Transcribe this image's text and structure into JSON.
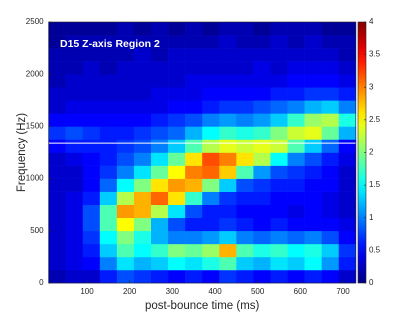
{
  "chart_data": {
    "type": "heatmap",
    "title": "D15 Z-axis Region 2",
    "xlabel": "post-bounce time (ms)",
    "ylabel": "Frequency (Hz)",
    "colormap": "jet",
    "xlim": [
      10,
      730
    ],
    "ylim": [
      0,
      2500
    ],
    "xticks": [
      100,
      200,
      300,
      400,
      500,
      600,
      700
    ],
    "yticks": [
      0,
      500,
      1000,
      1500,
      2000,
      2500
    ],
    "clim": [
      0,
      4
    ],
    "cticks": [
      0,
      0.5,
      1,
      1.5,
      2,
      2.5,
      3,
      3.5,
      4
    ],
    "hline": 1340,
    "x_bins": [
      10,
      50,
      90,
      130,
      170,
      210,
      250,
      290,
      330,
      370,
      410,
      450,
      490,
      530,
      570,
      610,
      650,
      690,
      730
    ],
    "y_bins": [
      0,
      125,
      250,
      375,
      500,
      625,
      750,
      875,
      1000,
      1125,
      1250,
      1375,
      1500,
      1625,
      1750,
      1875,
      2000,
      2125,
      2250,
      2375,
      2500
    ],
    "z": [
      [
        0.2,
        0.3,
        0.3,
        0.6,
        0.8,
        0.7,
        0.6,
        0.5,
        0.6,
        0.5,
        0.7,
        0.6,
        0.5,
        0.6,
        0.5,
        0.6,
        0.5,
        0.3
      ],
      [
        0.3,
        0.4,
        0.5,
        1.0,
        1.4,
        1.2,
        1.3,
        1.5,
        1.4,
        1.6,
        1.8,
        1.3,
        1.2,
        1.4,
        1.3,
        1.5,
        1.1,
        0.6
      ],
      [
        0.3,
        0.4,
        0.6,
        1.3,
        1.8,
        1.5,
        1.7,
        2.0,
        1.9,
        2.1,
        2.8,
        1.8,
        1.6,
        1.7,
        1.5,
        1.6,
        1.3,
        0.7
      ],
      [
        0.3,
        0.4,
        0.7,
        1.5,
        2.0,
        1.6,
        1.2,
        1.0,
        1.0,
        1.1,
        1.3,
        1.0,
        0.9,
        1.0,
        0.9,
        1.0,
        0.8,
        0.5
      ],
      [
        0.3,
        0.4,
        0.8,
        1.8,
        2.5,
        2.0,
        1.2,
        0.8,
        0.6,
        0.6,
        0.7,
        0.6,
        0.5,
        0.6,
        0.5,
        0.5,
        0.5,
        0.4
      ],
      [
        0.3,
        0.4,
        0.8,
        1.8,
        2.9,
        2.8,
        2.2,
        1.4,
        0.8,
        0.6,
        0.6,
        0.5,
        0.5,
        0.5,
        0.4,
        0.5,
        0.4,
        0.3
      ],
      [
        0.3,
        0.4,
        0.6,
        1.3,
        2.2,
        2.8,
        3.1,
        2.6,
        1.7,
        1.0,
        0.7,
        0.6,
        0.6,
        0.5,
        0.5,
        0.5,
        0.4,
        0.3
      ],
      [
        0.3,
        0.3,
        0.5,
        0.9,
        1.5,
        2.0,
        2.6,
        2.9,
        2.8,
        2.0,
        1.3,
        0.8,
        0.7,
        0.6,
        0.6,
        0.5,
        0.5,
        0.3
      ],
      [
        0.3,
        0.3,
        0.5,
        0.7,
        1.0,
        1.4,
        1.9,
        2.5,
        3.0,
        3.1,
        2.7,
        1.8,
        1.1,
        0.8,
        0.7,
        0.6,
        0.5,
        0.3
      ],
      [
        0.3,
        0.4,
        0.5,
        0.6,
        0.8,
        1.0,
        1.4,
        1.9,
        2.6,
        3.2,
        3.0,
        2.6,
        2.2,
        1.5,
        1.0,
        0.8,
        0.6,
        0.4
      ],
      [
        0.5,
        0.6,
        0.6,
        0.6,
        0.7,
        0.8,
        1.0,
        1.3,
        1.8,
        2.2,
        2.4,
        2.3,
        2.4,
        2.3,
        1.8,
        1.3,
        0.9,
        0.5
      ],
      [
        0.7,
        0.8,
        0.7,
        0.6,
        0.6,
        0.7,
        0.8,
        0.9,
        1.2,
        1.5,
        1.7,
        1.6,
        1.7,
        2.0,
        2.3,
        2.4,
        1.9,
        1.2
      ],
      [
        0.5,
        0.5,
        0.5,
        0.5,
        0.5,
        0.5,
        0.6,
        0.7,
        0.8,
        1.0,
        1.1,
        1.0,
        1.1,
        1.3,
        1.7,
        2.1,
        2.2,
        1.6
      ],
      [
        0.3,
        0.4,
        0.4,
        0.4,
        0.4,
        0.4,
        0.4,
        0.5,
        0.5,
        0.6,
        0.7,
        0.7,
        0.8,
        0.9,
        1.0,
        1.2,
        1.3,
        1.0
      ],
      [
        0.3,
        0.3,
        0.3,
        0.3,
        0.3,
        0.3,
        0.4,
        0.4,
        0.4,
        0.5,
        0.5,
        0.5,
        0.5,
        0.6,
        0.6,
        0.7,
        0.7,
        0.6
      ],
      [
        0.2,
        0.3,
        0.3,
        0.3,
        0.3,
        0.3,
        0.3,
        0.3,
        0.4,
        0.4,
        0.4,
        0.4,
        0.4,
        0.4,
        0.5,
        0.5,
        0.5,
        0.4
      ],
      [
        0.2,
        0.2,
        0.3,
        0.2,
        0.3,
        0.3,
        0.3,
        0.3,
        0.3,
        0.3,
        0.3,
        0.3,
        0.4,
        0.3,
        0.4,
        0.4,
        0.4,
        0.3
      ],
      [
        0.2,
        0.2,
        0.2,
        0.2,
        0.2,
        0.3,
        0.2,
        0.3,
        0.3,
        0.3,
        0.3,
        0.3,
        0.3,
        0.3,
        0.3,
        0.3,
        0.3,
        0.2
      ],
      [
        0.1,
        0.2,
        0.2,
        0.2,
        0.2,
        0.2,
        0.2,
        0.2,
        0.2,
        0.2,
        0.3,
        0.2,
        0.2,
        0.3,
        0.2,
        0.3,
        0.2,
        0.2
      ],
      [
        0.1,
        0.1,
        0.1,
        0.1,
        0.2,
        0.1,
        0.2,
        0.1,
        0.2,
        0.1,
        0.2,
        0.2,
        0.1,
        0.2,
        0.2,
        0.2,
        0.1,
        0.1
      ]
    ]
  }
}
